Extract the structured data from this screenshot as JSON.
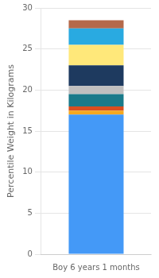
{
  "chart_data": {
    "type": "bar",
    "stacked": true,
    "categories": [
      "Boy 6 years 1 months"
    ],
    "series": [
      {
        "color": "#4499f7",
        "values": [
          17.0
        ]
      },
      {
        "color": "#f5a820",
        "values": [
          0.5
        ]
      },
      {
        "color": "#d94e1f",
        "values": [
          0.5
        ]
      },
      {
        "color": "#1a7a8a",
        "values": [
          1.5
        ]
      },
      {
        "color": "#c0bfbf",
        "values": [
          1.0
        ]
      },
      {
        "color": "#1e3a5f",
        "values": [
          2.5
        ]
      },
      {
        "color": "#ffe87a",
        "values": [
          2.5
        ]
      },
      {
        "color": "#29aae1",
        "values": [
          2.0
        ]
      },
      {
        "color": "#b5694a",
        "values": [
          1.0
        ]
      }
    ],
    "ylabel": "Percentile Weight in Kilograms",
    "ylim": [
      0,
      30
    ],
    "yticks": [
      0,
      5,
      10,
      15,
      20,
      25,
      30
    ],
    "grid": true
  }
}
